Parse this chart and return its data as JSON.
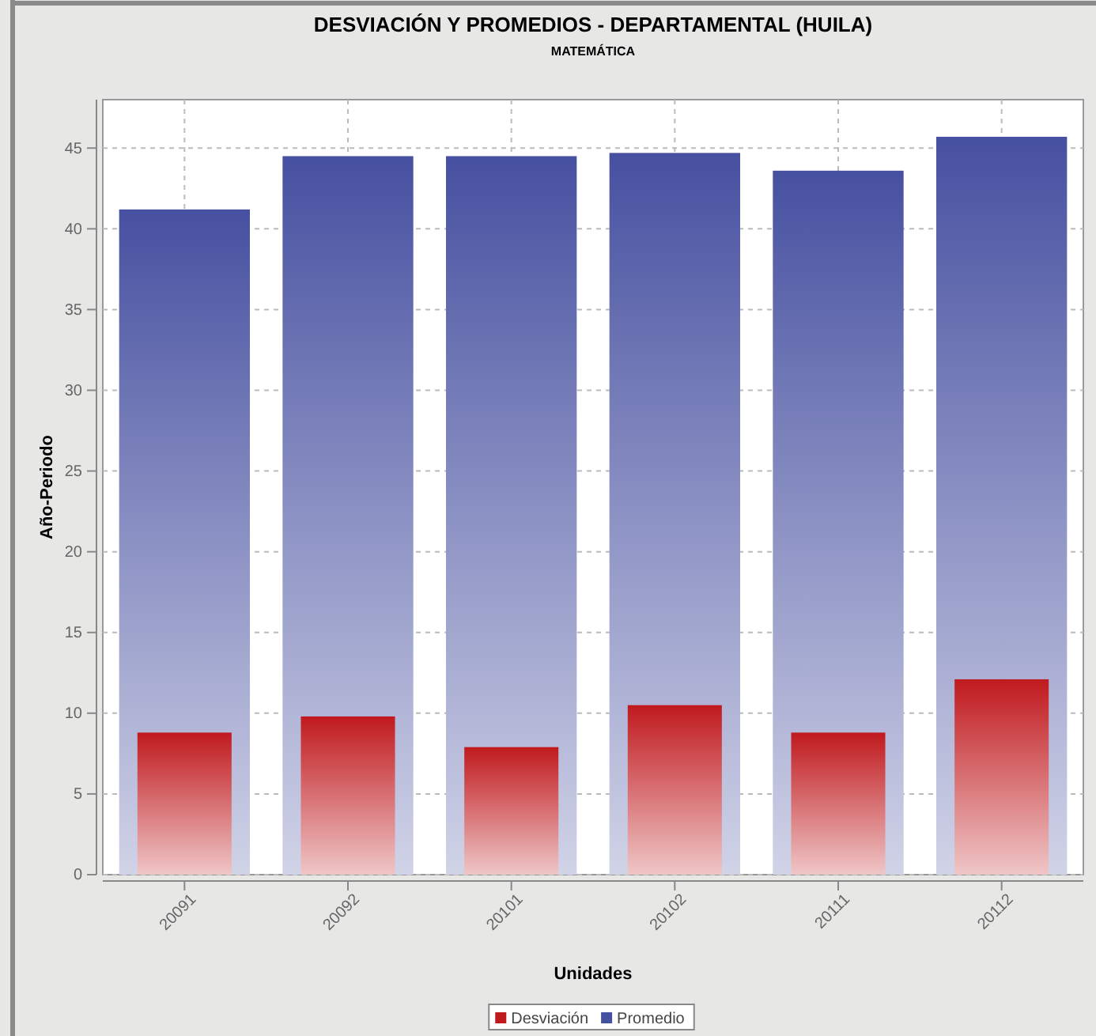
{
  "chart_data": {
    "type": "bar",
    "title": "DESVIACIÓN Y PROMEDIOS - DEPARTAMENTAL (HUILA)",
    "subtitle": "MATEMÁTICA",
    "xlabel": "Unidades",
    "ylabel": "Año-Periodo",
    "categories": [
      "20091",
      "20092",
      "20101",
      "20102",
      "20111",
      "20112"
    ],
    "series": [
      {
        "name": "Desviación",
        "color": "#c01a1e",
        "values": [
          8.8,
          9.8,
          7.9,
          10.5,
          8.8,
          12.1
        ]
      },
      {
        "name": "Promedio",
        "color": "#4650a0",
        "values": [
          41.2,
          44.5,
          44.5,
          44.7,
          43.6,
          45.7
        ]
      }
    ],
    "ylim": [
      0,
      48
    ],
    "yticks": [
      0,
      5,
      10,
      15,
      20,
      25,
      30,
      35,
      40,
      45
    ],
    "grid": true,
    "legend": "bottom"
  }
}
